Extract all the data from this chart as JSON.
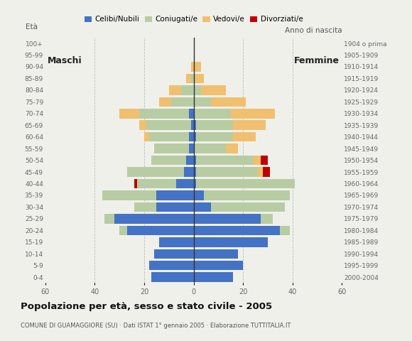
{
  "age_groups": [
    "0-4",
    "5-9",
    "10-14",
    "15-19",
    "20-24",
    "25-29",
    "30-34",
    "35-39",
    "40-44",
    "45-49",
    "50-54",
    "55-59",
    "60-64",
    "65-69",
    "70-74",
    "75-79",
    "80-84",
    "85-89",
    "90-94",
    "95-99",
    "100+"
  ],
  "birth_years": [
    "2000-2004",
    "1995-1999",
    "1990-1994",
    "1985-1989",
    "1980-1984",
    "1975-1979",
    "1970-1974",
    "1965-1969",
    "1960-1964",
    "1955-1959",
    "1950-1954",
    "1945-1949",
    "1940-1944",
    "1935-1939",
    "1930-1934",
    "1925-1929",
    "1920-1924",
    "1915-1919",
    "1910-1914",
    "1905-1909",
    "1904 o prima"
  ],
  "males": {
    "celibi": [
      17,
      18,
      16,
      14,
      27,
      32,
      15,
      15,
      7,
      4,
      3,
      2,
      2,
      1,
      2,
      0,
      0,
      0,
      0,
      0,
      0
    ],
    "coniugati": [
      0,
      0,
      0,
      0,
      3,
      4,
      9,
      22,
      16,
      23,
      14,
      14,
      16,
      18,
      20,
      9,
      5,
      1,
      0,
      0,
      0
    ],
    "vedovi": [
      0,
      0,
      0,
      0,
      0,
      0,
      0,
      0,
      0,
      0,
      0,
      0,
      2,
      3,
      8,
      5,
      5,
      2,
      1,
      0,
      0
    ],
    "divorziati": [
      0,
      0,
      0,
      0,
      0,
      0,
      0,
      0,
      1,
      0,
      0,
      0,
      0,
      0,
      0,
      0,
      0,
      0,
      0,
      0,
      0
    ]
  },
  "females": {
    "nubili": [
      16,
      20,
      18,
      30,
      35,
      27,
      7,
      4,
      1,
      1,
      1,
      0,
      1,
      1,
      0,
      0,
      0,
      0,
      0,
      0,
      0
    ],
    "coniugate": [
      0,
      0,
      0,
      0,
      4,
      5,
      30,
      35,
      40,
      25,
      23,
      13,
      15,
      15,
      15,
      7,
      3,
      0,
      0,
      0,
      0
    ],
    "vedove": [
      0,
      0,
      0,
      0,
      0,
      0,
      0,
      0,
      0,
      2,
      3,
      5,
      9,
      13,
      18,
      14,
      10,
      4,
      3,
      0,
      0
    ],
    "divorziate": [
      0,
      0,
      0,
      0,
      0,
      0,
      0,
      0,
      0,
      3,
      3,
      0,
      0,
      0,
      0,
      0,
      0,
      0,
      0,
      0,
      0
    ]
  },
  "colors": {
    "celibi": "#4472c4",
    "coniugati": "#b8cca4",
    "vedovi": "#f0c070",
    "divorziati": "#c00000"
  },
  "title": "Popolazione per età, sesso e stato civile - 2005",
  "subtitle": "COMUNE DI GUAMAGGIORE (SU) · Dati ISTAT 1° gennaio 2005 · Elaborazione TUTTITALIA.IT",
  "xlabel_left": "Maschi",
  "xlabel_right": "Femmine",
  "yleft_label": "Età",
  "yright_label": "Anno di nascita",
  "xlim": 60,
  "background_color": "#f0f0eb",
  "legend_labels": [
    "Celibi/Nubili",
    "Coniugati/e",
    "Vedovi/e",
    "Divorziati/e"
  ]
}
